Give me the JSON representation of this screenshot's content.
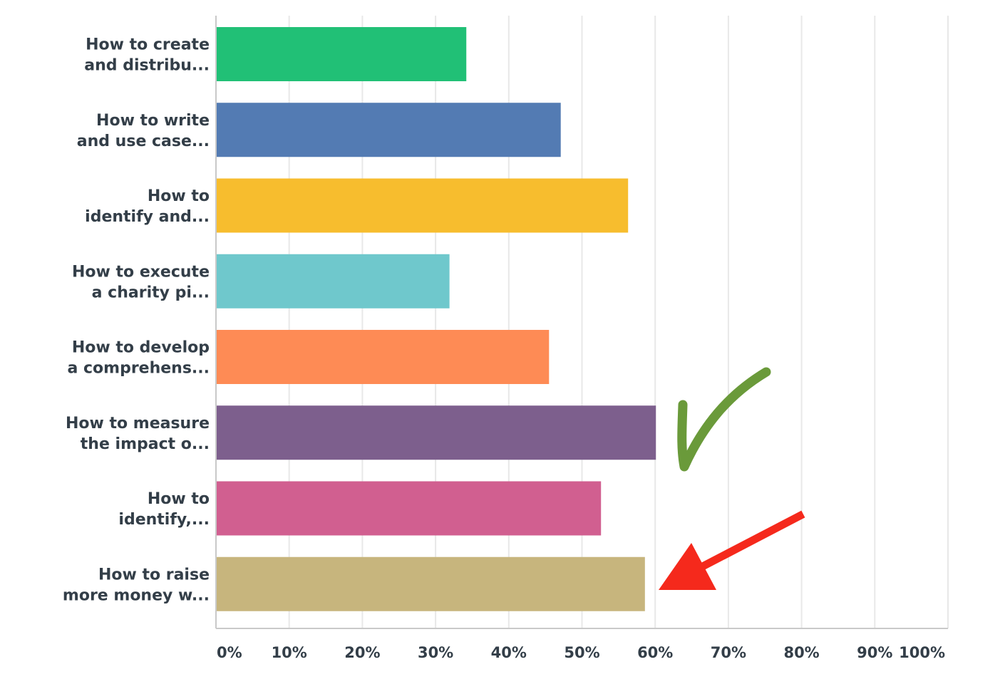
{
  "chart_data": {
    "type": "bar",
    "orientation": "horizontal",
    "categories": [
      [
        "How to create",
        "and distribu..."
      ],
      [
        "How to write",
        "and use case..."
      ],
      [
        "How to",
        "identify and..."
      ],
      [
        "How to execute",
        "a charity pi..."
      ],
      [
        "How to develop",
        "a comprehens..."
      ],
      [
        "How to measure",
        "the impact o..."
      ],
      [
        "How to",
        "identify,..."
      ],
      [
        "How to raise",
        "more money w..."
      ]
    ],
    "values": [
      34.2,
      47.1,
      56.3,
      31.9,
      45.5,
      60.1,
      52.6,
      58.6
    ],
    "colors": [
      "#21c076",
      "#537bb3",
      "#f7bd2e",
      "#6fc8cc",
      "#fe8b55",
      "#7d5f8d",
      "#d15f90",
      "#c7b57d"
    ],
    "xlim": [
      0,
      100
    ],
    "ticks": [
      "0%",
      "10%",
      "20%",
      "30%",
      "40%",
      "50%",
      "60%",
      "70%",
      "80%",
      "90%",
      "100%"
    ],
    "grid": true,
    "title": "",
    "xlabel": "",
    "ylabel": "",
    "annotations": [
      {
        "type": "checkmark",
        "color": "#6a9a3a",
        "near_category": 5
      },
      {
        "type": "arrow",
        "color": "#f5291c",
        "points_to_category": 7
      }
    ]
  }
}
